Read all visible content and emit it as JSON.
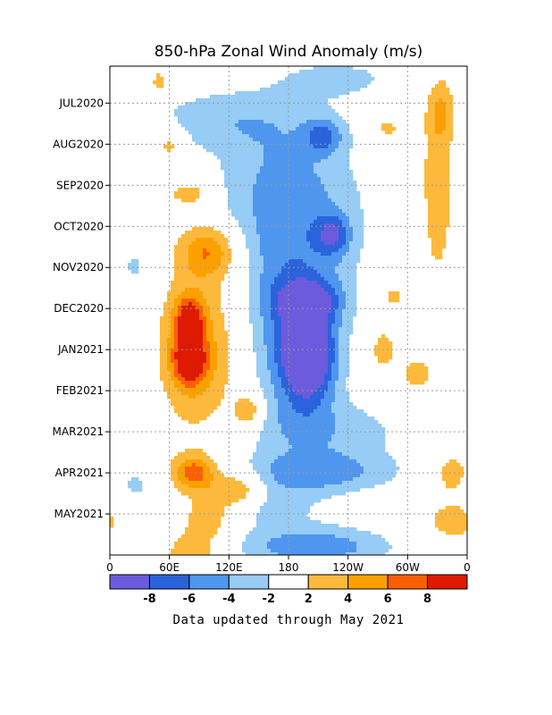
{
  "chart_data": {
    "type": "heatmap",
    "title": "850-hPa Zonal Wind Anomaly (m/s)",
    "xlabel": "",
    "ylabel": "",
    "x_ticks": [
      "0",
      "60E",
      "120E",
      "180",
      "120W",
      "60W",
      "0"
    ],
    "x_values": [
      0,
      60,
      120,
      180,
      240,
      300,
      360
    ],
    "xlim": [
      0,
      360
    ],
    "y_ticks": [
      "JUL2020",
      "AUG2020",
      "SEP2020",
      "OCT2020",
      "NOV2020",
      "DEC2020",
      "JAN2021",
      "FEB2021",
      "MAR2021",
      "APR2021",
      "MAY2021"
    ],
    "y_values": [
      1,
      2,
      3,
      4,
      5,
      6,
      7,
      8,
      9,
      10,
      11
    ],
    "ylim": [
      0.1,
      12.0
    ],
    "y_direction": "time increases downward",
    "grid": true,
    "colorbar": {
      "ticks": [
        "-8",
        "-6",
        "-4",
        "-2",
        "2",
        "4",
        "6",
        "8"
      ],
      "levels": [
        -10,
        -8,
        -6,
        -4,
        -2,
        2,
        4,
        6,
        8,
        10
      ],
      "colors": [
        "#6c5bdc",
        "#2b63dd",
        "#4f96ee",
        "#96ccf5",
        "#ffffff",
        "#fdb93c",
        "#fca000",
        "#fb5f00",
        "#de1a00"
      ]
    },
    "anomaly_features": [
      {
        "lon": 200,
        "time": 7.2,
        "peak": -9.5,
        "sx": 18,
        "sy": 0.75
      },
      {
        "lon": 185,
        "time": 6.6,
        "peak": -5.0,
        "sx": 32,
        "sy": 1.6
      },
      {
        "lon": 200,
        "time": 5.8,
        "peak": -6.0,
        "sx": 22,
        "sy": 0.35
      },
      {
        "lon": 225,
        "time": 4.2,
        "peak": -5.5,
        "sx": 12,
        "sy": 0.35
      },
      {
        "lon": 190,
        "time": 4.0,
        "peak": -3.0,
        "sx": 55,
        "sy": 1.7
      },
      {
        "lon": 170,
        "time": 3.0,
        "peak": -2.3,
        "sx": 45,
        "sy": 1.1
      },
      {
        "lon": 115,
        "time": 1.4,
        "peak": -3.0,
        "sx": 60,
        "sy": 0.55
      },
      {
        "lon": 215,
        "time": 1.8,
        "peak": -5.0,
        "sx": 14,
        "sy": 0.3
      },
      {
        "lon": 230,
        "time": 0.4,
        "peak": -2.5,
        "sx": 45,
        "sy": 0.35
      },
      {
        "lon": 210,
        "time": 10.0,
        "peak": -4.8,
        "sx": 55,
        "sy": 0.35
      },
      {
        "lon": 220,
        "time": 9.0,
        "peak": -3.0,
        "sx": 60,
        "sy": 0.55
      },
      {
        "lon": 160,
        "time": 10.8,
        "peak": -2.6,
        "sx": 40,
        "sy": 0.4
      },
      {
        "lon": 205,
        "time": 11.8,
        "peak": -5.5,
        "sx": 55,
        "sy": 0.35
      },
      {
        "lon": 25,
        "time": 10.3,
        "peak": -2.4,
        "sx": 14,
        "sy": 0.35
      },
      {
        "lon": 25,
        "time": 5.0,
        "peak": -2.4,
        "sx": 12,
        "sy": 0.45
      },
      {
        "lon": 80,
        "time": 7.2,
        "peak": 9.0,
        "sx": 12,
        "sy": 0.45
      },
      {
        "lon": 80,
        "time": 6.2,
        "peak": 7.0,
        "sx": 10,
        "sy": 0.35
      },
      {
        "lon": 90,
        "time": 6.9,
        "peak": 4.5,
        "sx": 30,
        "sy": 1.6
      },
      {
        "lon": 100,
        "time": 4.6,
        "peak": 5.5,
        "sx": 20,
        "sy": 0.45
      },
      {
        "lon": 85,
        "time": 10.0,
        "peak": 7.0,
        "sx": 15,
        "sy": 0.3
      },
      {
        "lon": 130,
        "time": 10.4,
        "peak": 5.0,
        "sx": 18,
        "sy": 0.3
      },
      {
        "lon": 140,
        "time": 8.5,
        "peak": 4.5,
        "sx": 10,
        "sy": 0.3
      },
      {
        "lon": 100,
        "time": 11.1,
        "peak": 3.5,
        "sx": 20,
        "sy": 0.45
      },
      {
        "lon": 60,
        "time": 2.0,
        "peak": 3.5,
        "sx": 10,
        "sy": 0.3
      },
      {
        "lon": 80,
        "time": 3.2,
        "peak": 3.5,
        "sx": 15,
        "sy": 0.2
      },
      {
        "lon": 50,
        "time": 0.5,
        "peak": 3.0,
        "sx": 8,
        "sy": 0.25
      },
      {
        "lon": 82,
        "time": 12.0,
        "peak": 3.5,
        "sx": 20,
        "sy": 0.35
      },
      {
        "lon": 330,
        "time": 3.0,
        "peak": 3.5,
        "sx": 12,
        "sy": 1.8
      },
      {
        "lon": 310,
        "time": 7.6,
        "peak": 3.2,
        "sx": 12,
        "sy": 0.3
      },
      {
        "lon": 345,
        "time": 10.0,
        "peak": 3.0,
        "sx": 15,
        "sy": 0.45
      },
      {
        "lon": 345,
        "time": 11.2,
        "peak": 3.5,
        "sx": 18,
        "sy": 0.3
      },
      {
        "lon": 335,
        "time": 1.2,
        "peak": 3.0,
        "sx": 10,
        "sy": 0.5
      },
      {
        "lon": 285,
        "time": 5.7,
        "peak": 2.6,
        "sx": 15,
        "sy": 0.4
      },
      {
        "lon": 275,
        "time": 7.0,
        "peak": 3.2,
        "sx": 10,
        "sy": 0.4
      },
      {
        "lon": 280,
        "time": 1.6,
        "peak": 3.0,
        "sx": 9,
        "sy": 0.2
      }
    ]
  }
}
